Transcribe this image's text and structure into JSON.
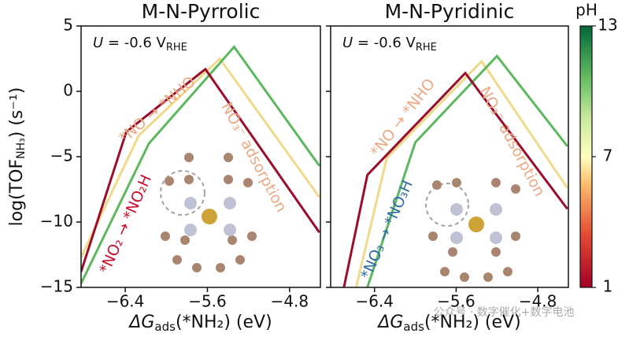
{
  "chart_data": [
    {
      "type": "line",
      "title": "M-N-Pyrrolic",
      "xlabel": [
        "ΔG",
        "ads",
        "(*NH₂) (eV)"
      ],
      "ylabel": [
        "log(TOF",
        "NH₃",
        ") (s⁻¹)"
      ],
      "u_label": {
        "var": "U",
        "text": " = -0.6 V",
        "sub": "RHE"
      },
      "annotations": [
        {
          "text": "*NO → *NHO",
          "color": "#eba985"
        },
        {
          "text": "NO₃⁻ adsorption",
          "color": "#eba985"
        },
        {
          "text": "*NO₂ → *NO₂H",
          "color": "#c8102e"
        }
      ],
      "xlim": [
        -6.83,
        -4.5
      ],
      "ylim": [
        -15,
        5
      ],
      "xticks": [
        {
          "value": -6.4,
          "label": "−6.4"
        },
        {
          "value": -5.6,
          "label": "−5.6"
        },
        {
          "value": -4.8,
          "label": "−4.8"
        }
      ],
      "yticks": [
        5,
        0,
        {
          "value": -5,
          "label": "−5"
        },
        {
          "value": -10,
          "label": "−10"
        },
        {
          "value": -15,
          "label": "−15"
        }
      ],
      "series": [
        {
          "color": "#f0d98a",
          "x": [
            -6.83,
            -6.27,
            -5.48,
            -4.51
          ],
          "values": [
            -12.7,
            -3.4,
            2.5,
            -8.1
          ]
        },
        {
          "color": "#5cb85c",
          "x": [
            -6.83,
            -6.17,
            -5.34,
            -4.51
          ],
          "values": [
            -14.7,
            -4.0,
            3.4,
            -5.7
          ]
        },
        {
          "color": "#9b0d2a",
          "x": [
            -6.83,
            -6.39,
            -5.62,
            -4.51
          ],
          "values": [
            -13.8,
            -3.1,
            1.7,
            -10.8
          ]
        }
      ]
    },
    {
      "type": "line",
      "title": "M-N-Pyridinic",
      "xlabel": [
        "ΔG",
        "ads",
        "(*NH₂) (eV)"
      ],
      "u_label": {
        "var": "U",
        "text": " = -0.6 V",
        "sub": "RHE"
      },
      "annotations": [
        {
          "text": "*NO → *NHO",
          "color": "#eba985"
        },
        {
          "text": "NO₃⁻ adsorption",
          "color": "#eba985"
        },
        {
          "text": "*NO₃ → *NO₃H",
          "color": "#2e6da4"
        }
      ],
      "xlim": [
        -6.83,
        -4.5
      ],
      "ylim": [
        -15,
        5
      ],
      "xticks": [
        {
          "value": -6.4,
          "label": "−6.4"
        },
        {
          "value": -5.6,
          "label": "−5.6"
        },
        {
          "value": -4.8,
          "label": "−4.8"
        }
      ],
      "yticks": [
        5,
        0,
        {
          "value": -5,
          "label": "−5"
        },
        {
          "value": -10,
          "label": "−10"
        },
        {
          "value": -15,
          "label": "−15"
        }
      ],
      "series": [
        {
          "color": "#f0d98a",
          "x": [
            -6.58,
            -6.28,
            -5.35,
            -4.51
          ],
          "values": [
            -15,
            -5.1,
            2.3,
            -7.4
          ]
        },
        {
          "color": "#5cb85c",
          "x": [
            -6.47,
            -6.0,
            -5.2,
            -4.51
          ],
          "values": [
            -15,
            -3.9,
            2.7,
            -4.2
          ]
        },
        {
          "color": "#9b0d2a",
          "x": [
            -6.7,
            -6.47,
            -5.51,
            -4.51
          ],
          "values": [
            -15,
            -6.4,
            1.4,
            -9.0
          ]
        }
      ]
    }
  ],
  "colorbar": {
    "title": "pH",
    "lim": [
      1,
      13
    ],
    "ticks": [
      1,
      7,
      13
    ]
  },
  "watermark": "公众号 · 数字催化+数字电池"
}
